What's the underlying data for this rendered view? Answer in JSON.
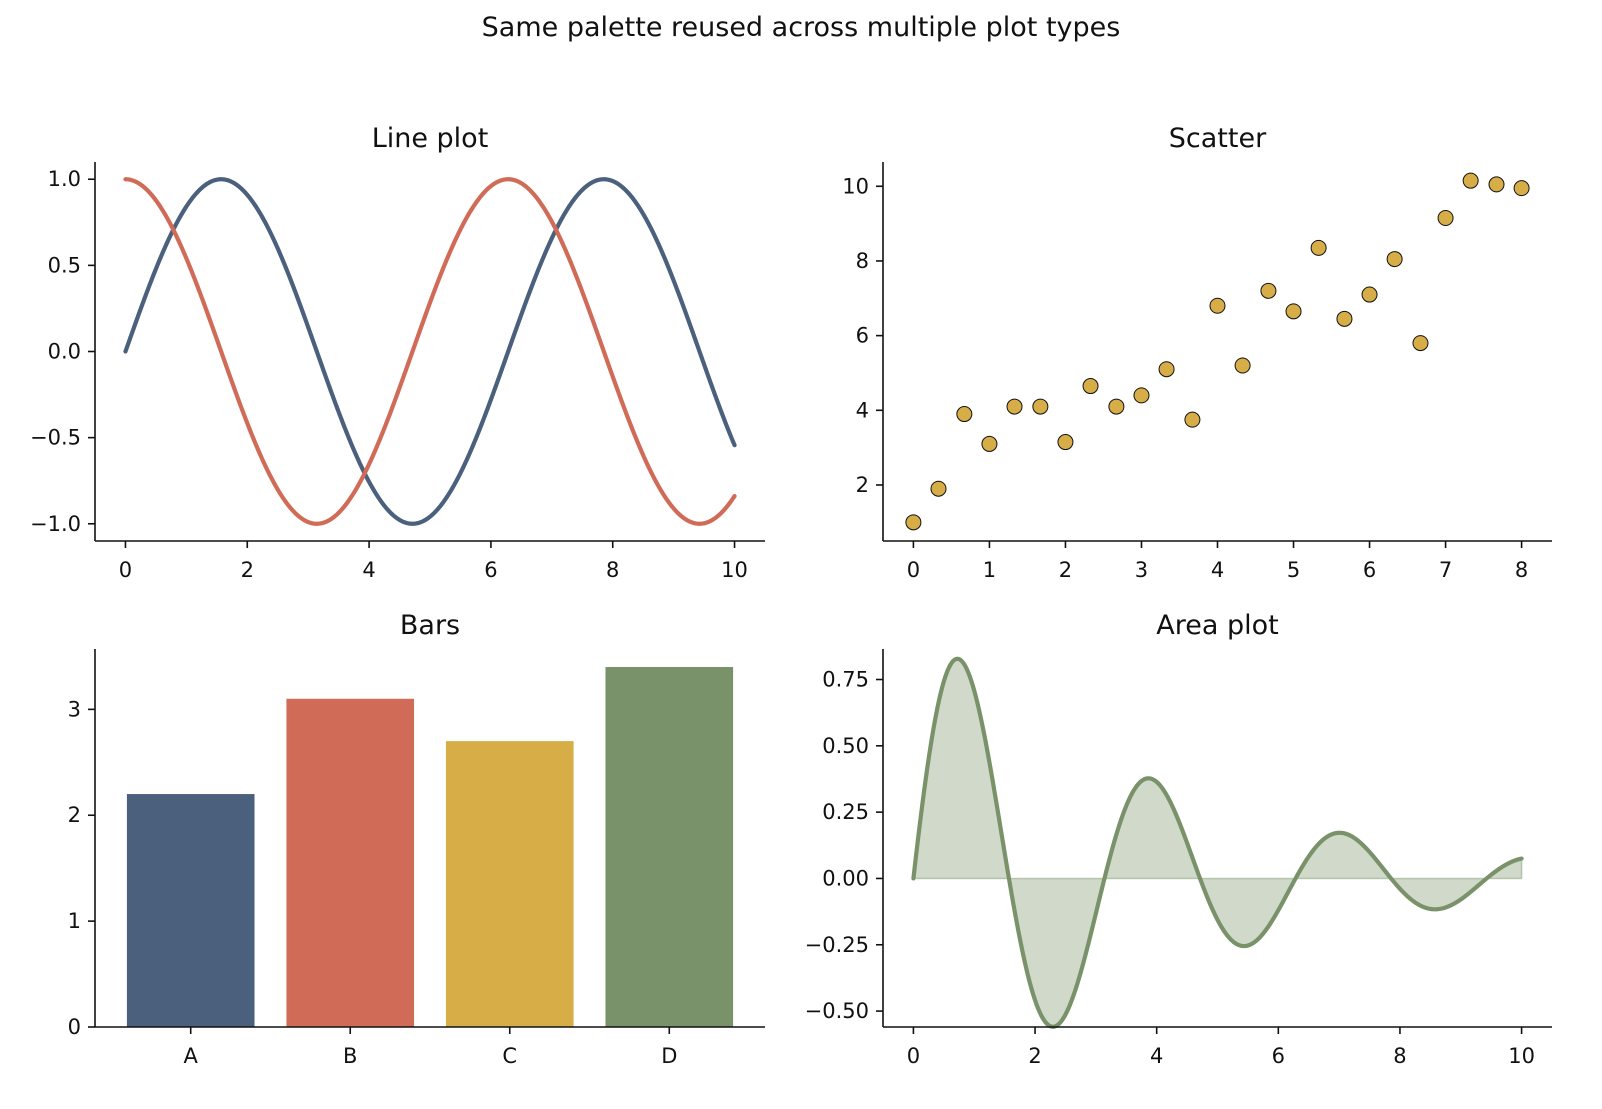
{
  "figure": {
    "suptitle": "Same palette reused across multiple plot types",
    "palette": {
      "navy": "#4a607c",
      "coral": "#d06b58",
      "mustard": "#d6ad47",
      "sage": "#7a926a"
    }
  },
  "chart_data": [
    {
      "type": "line",
      "title": "Line plot",
      "xlim": [
        -0.5,
        10.5
      ],
      "ylim": [
        -1.1,
        1.1
      ],
      "xticks": [
        0,
        2,
        4,
        6,
        8,
        10
      ],
      "yticks": [
        1.0,
        0.5,
        0.0,
        -0.5,
        -1.0
      ],
      "ytick_labels": [
        "1.0",
        "0.5",
        "0.0",
        "−0.5",
        "−1.0"
      ],
      "series": [
        {
          "function": "sin(x)",
          "x_range": [
            0,
            10
          ],
          "color": "#4a607c",
          "x": [
            0,
            0.5,
            1,
            1.5,
            2,
            2.5,
            3,
            3.5,
            4,
            4.5,
            5,
            5.5,
            6,
            6.5,
            7,
            7.5,
            8,
            8.5,
            9,
            9.5,
            10
          ],
          "y": [
            0,
            0.48,
            0.84,
            1.0,
            0.91,
            0.6,
            0.14,
            -0.35,
            -0.76,
            -0.98,
            -0.96,
            -0.71,
            -0.28,
            0.22,
            0.66,
            0.94,
            0.99,
            0.8,
            0.41,
            -0.08,
            -0.54
          ]
        },
        {
          "function": "cos(x)",
          "x_range": [
            0,
            10
          ],
          "color": "#d06b58",
          "x": [
            0,
            0.5,
            1,
            1.5,
            2,
            2.5,
            3,
            3.5,
            4,
            4.5,
            5,
            5.5,
            6,
            6.5,
            7,
            7.5,
            8,
            8.5,
            9,
            9.5,
            10
          ],
          "y": [
            1.0,
            0.88,
            0.54,
            0.07,
            -0.42,
            -0.8,
            -0.99,
            -0.94,
            -0.65,
            -0.21,
            0.28,
            0.71,
            0.96,
            0.98,
            0.75,
            0.35,
            -0.15,
            -0.6,
            -0.91,
            -1.0,
            -0.84
          ]
        }
      ]
    },
    {
      "type": "scatter",
      "title": "Scatter",
      "xlim": [
        -0.4,
        8.4
      ],
      "ylim": [
        0.5,
        10.65
      ],
      "xticks": [
        0,
        1,
        2,
        3,
        4,
        5,
        6,
        7,
        8
      ],
      "yticks": [
        2,
        4,
        6,
        8,
        10
      ],
      "color": "#d6ad47",
      "points": [
        [
          0,
          1.0
        ],
        [
          0.33,
          1.9
        ],
        [
          0.67,
          3.9
        ],
        [
          1.0,
          3.1
        ],
        [
          1.33,
          4.1
        ],
        [
          1.67,
          4.1
        ],
        [
          2.0,
          3.15
        ],
        [
          2.33,
          4.65
        ],
        [
          2.67,
          4.1
        ],
        [
          3.0,
          4.4
        ],
        [
          3.33,
          5.1
        ],
        [
          3.67,
          3.75
        ],
        [
          4.0,
          6.8
        ],
        [
          4.33,
          5.2
        ],
        [
          4.67,
          7.2
        ],
        [
          5.0,
          6.65
        ],
        [
          5.33,
          8.35
        ],
        [
          5.67,
          6.45
        ],
        [
          6.0,
          7.1
        ],
        [
          6.33,
          8.05
        ],
        [
          6.67,
          5.8
        ],
        [
          7.0,
          9.15
        ],
        [
          7.33,
          10.15
        ],
        [
          7.67,
          10.05
        ],
        [
          8.0,
          9.95
        ]
      ]
    },
    {
      "type": "bar",
      "title": "Bars",
      "categories": [
        "A",
        "B",
        "C",
        "D"
      ],
      "values": [
        2.2,
        3.1,
        2.7,
        3.4
      ],
      "colors": [
        "#4a607c",
        "#d06b58",
        "#d6ad47",
        "#7a926a"
      ],
      "ylim": [
        0,
        3.57
      ],
      "yticks": [
        0,
        1,
        2,
        3
      ]
    },
    {
      "type": "area",
      "title": "Area plot",
      "function": "exp(-0.25x)·sin(2x)",
      "x_range": [
        0,
        10
      ],
      "xlim": [
        -0.5,
        10.5
      ],
      "ylim": [
        -0.56,
        0.865
      ],
      "xticks": [
        0,
        2,
        4,
        6,
        8,
        10
      ],
      "yticks": [
        0.75,
        0.5,
        0.25,
        0.0,
        -0.25,
        -0.5
      ],
      "ytick_labels": [
        "0.75",
        "0.50",
        "0.25",
        "0.00",
        "−0.25",
        "−0.50"
      ],
      "line_color": "#7a926a",
      "fill_color": "#7a926a",
      "x": [
        0,
        0.5,
        1,
        1.5,
        2,
        2.5,
        3,
        3.5,
        4,
        4.5,
        5,
        5.5,
        6,
        6.5,
        7,
        7.5,
        8,
        8.5,
        9,
        9.5,
        10
      ],
      "y": [
        0,
        0.74,
        0.71,
        0.1,
        -0.46,
        -0.52,
        -0.13,
        0.27,
        0.36,
        0.13,
        -0.16,
        -0.25,
        -0.12,
        0.09,
        0.17,
        0.1,
        -0.04,
        -0.11,
        -0.08,
        0.02,
        0.07
      ]
    }
  ]
}
